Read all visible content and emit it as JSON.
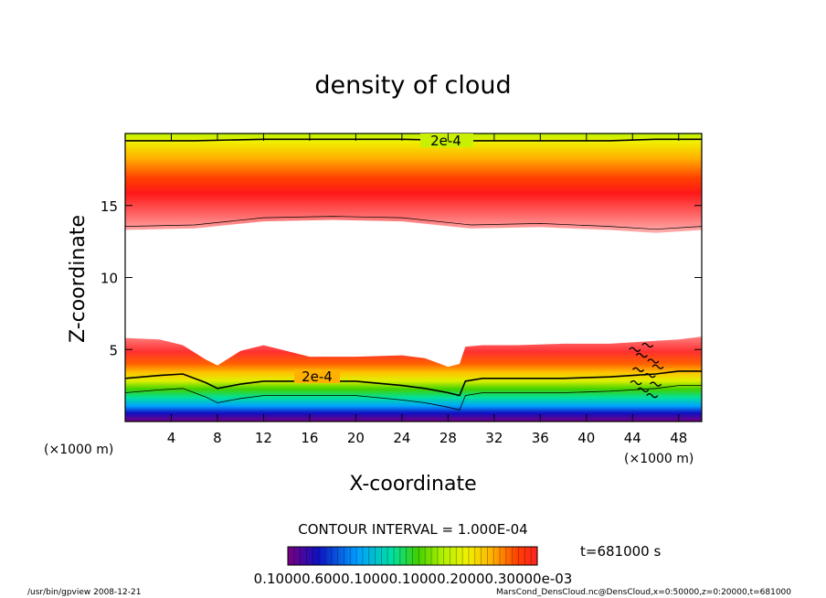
{
  "chart_data": {
    "type": "heatmap",
    "title": "density of cloud",
    "xlabel": "X-coordinate",
    "ylabel": "Z-coordinate",
    "x_unit": "(×1000 m)",
    "xlim": [
      0,
      50
    ],
    "ylim": [
      0,
      20
    ],
    "x_ticks": [
      4,
      8,
      12,
      16,
      20,
      24,
      28,
      32,
      36,
      40,
      44,
      48
    ],
    "y_ticks": [
      5,
      10,
      15
    ],
    "contour_interval": "CONTOUR INTERVAL = 1.000E-04",
    "contour_labels": [
      "2e-4",
      "2e-4"
    ],
    "colorbar_labels": "0.10000.6000.10000.10000.20000.30000e-03",
    "colorbar_range": [
      0.0001,
      0.0003
    ],
    "time_label": "t=681000 s",
    "footer_left": "/usr/bin/gpview   2008-12-21",
    "footer_right": "MarsCond_DensCloud.nc@DensCloud,x=0:50000,z=0:20000,t=681000",
    "colorscale": [
      "#7a0080",
      "#1010c0",
      "#00a0ff",
      "#00e0a0",
      "#40d000",
      "#b0f000",
      "#f0f000",
      "#ffb000",
      "#ff4000",
      "#ff2020",
      "#ff8080",
      "#ffc0c0"
    ],
    "upper_layer": {
      "x": [
        0,
        6,
        12,
        18,
        24,
        30,
        36,
        42,
        46,
        50
      ],
      "bottom_z": [
        13.3,
        13.4,
        13.9,
        14.0,
        13.9,
        13.4,
        13.5,
        13.3,
        13.1,
        13.3
      ],
      "core_z": 15.5,
      "contour_z": [
        19.5,
        19.5,
        19.6,
        19.6,
        19.6,
        19.5,
        19.5,
        19.5,
        19.6,
        19.6
      ]
    },
    "lower_layer": {
      "x": [
        0,
        3,
        5,
        7,
        8,
        10,
        12,
        16,
        20,
        24,
        26,
        28,
        29,
        29.5,
        31,
        34,
        38,
        42,
        44,
        46,
        48,
        50
      ],
      "top_z": [
        5.8,
        5.7,
        5.3,
        4.3,
        3.9,
        4.9,
        5.3,
        4.5,
        4.5,
        4.6,
        4.4,
        3.8,
        4.0,
        5.2,
        5.3,
        5.3,
        5.4,
        5.4,
        5.5,
        5.6,
        5.7,
        5.9
      ],
      "contour_z": [
        3.0,
        3.2,
        3.3,
        2.7,
        2.3,
        2.6,
        2.8,
        2.8,
        2.8,
        2.5,
        2.3,
        2.0,
        1.8,
        2.8,
        3.0,
        3.0,
        3.0,
        3.1,
        3.2,
        3.3,
        3.5,
        3.5
      ]
    }
  }
}
